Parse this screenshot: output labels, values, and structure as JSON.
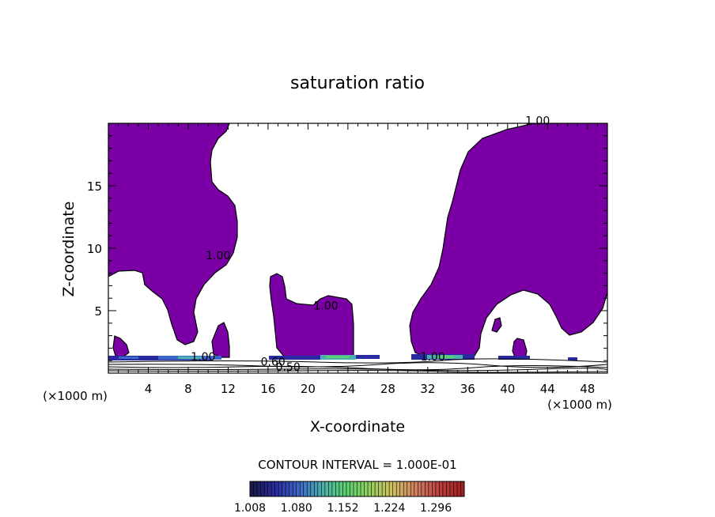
{
  "chart_data": {
    "type": "filled-contour",
    "title": "saturation ratio",
    "xlabel": "X-coordinate",
    "ylabel": "Z-coordinate",
    "x_unit": "(×1000 m)",
    "x_unit_right": "(×1000 m)",
    "y_unit": "",
    "xlim": [
      0,
      50
    ],
    "ylim": [
      0,
      20
    ],
    "xticks": [
      4,
      8,
      12,
      16,
      20,
      24,
      28,
      32,
      36,
      40,
      44,
      48
    ],
    "xtick_labels": [
      "4",
      "8",
      "12",
      "16",
      "20",
      "24",
      "28",
      "32",
      "36",
      "40",
      "44",
      "48"
    ],
    "yticks": [
      5,
      10,
      15
    ],
    "ytick_labels": [
      "5",
      "10",
      "15"
    ],
    "contour_interval_text": "CONTOUR INTERVAL = 1.000E-01",
    "contour_labels": [
      {
        "text": "1.00",
        "x": 43.0,
        "y": 19.9
      },
      {
        "text": "1.00",
        "x": 11.0,
        "y": 9.1
      },
      {
        "text": "1.00",
        "x": 21.8,
        "y": 5.1
      },
      {
        "text": "0.60",
        "x": 16.5,
        "y": 0.6
      },
      {
        "text": "0.50",
        "x": 18.0,
        "y": 0.2
      },
      {
        "text": "1.00",
        "x": 32.5,
        "y": 1.0
      },
      {
        "text": "1.00",
        "x": 9.5,
        "y": 1.0
      }
    ],
    "colorbar": {
      "min": 1.008,
      "max": 1.34,
      "tick_labels": [
        "1.008",
        "1.080",
        "1.152",
        "1.224",
        "1.296"
      ],
      "colors": [
        "#1a1a4a",
        "#2a2aa0",
        "#3c66c8",
        "#4cb0b0",
        "#5ad070",
        "#90d060",
        "#d0c060",
        "#d08060",
        "#c04040",
        "#a02020"
      ]
    },
    "region_color": "#7a00a6",
    "regions_description_level": "saturation ratio > 1.00 (purple fill)"
  }
}
